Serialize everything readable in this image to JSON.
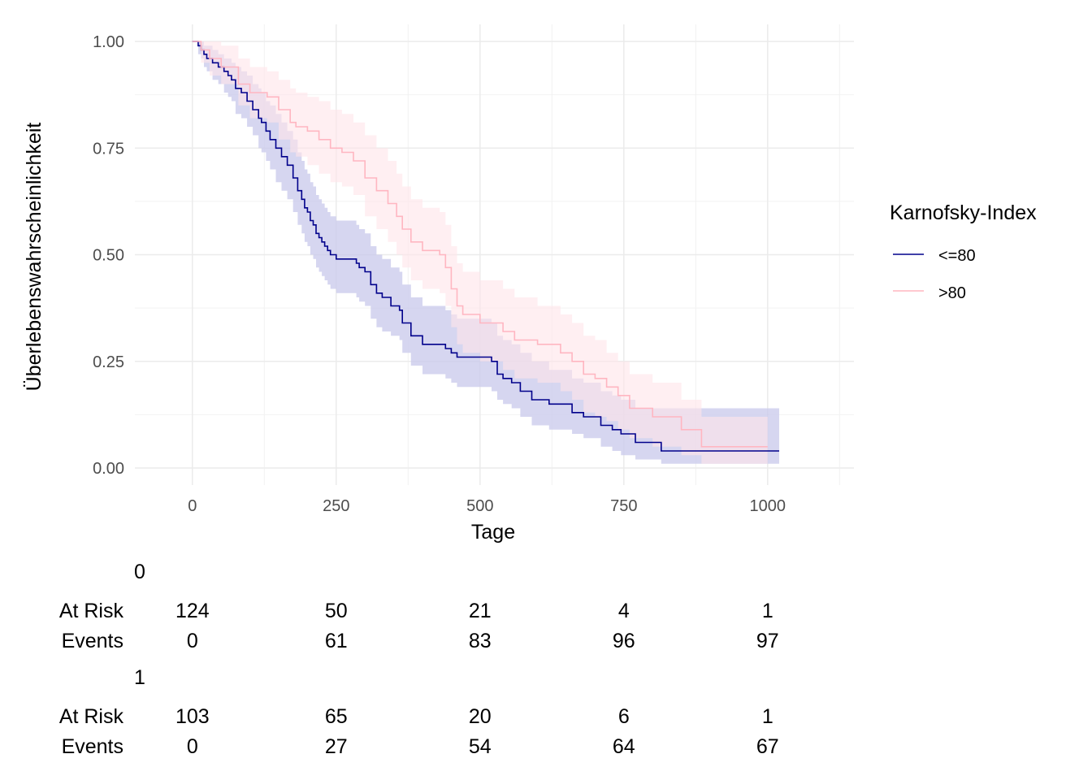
{
  "chart_data": {
    "type": "line",
    "subtype": "kaplan-meier",
    "title": "",
    "xlabel": "Tage",
    "ylabel": "Überlebenswahrscheinlichkeit",
    "xlim": [
      -100,
      1150
    ],
    "ylim": [
      -0.04,
      1.04
    ],
    "xticks": [
      0,
      250,
      500,
      750,
      1000
    ],
    "xtick_labels": [
      "0",
      "250",
      "500",
      "750",
      "1000"
    ],
    "yticks": [
      0,
      0.25,
      0.5,
      0.75,
      1.0
    ],
    "ytick_labels": [
      "0.00",
      "0.25",
      "0.50",
      "0.75",
      "1.00"
    ],
    "grid": true,
    "legend": {
      "title": "Karnofsky-Index",
      "position": "right",
      "entries": [
        {
          "label": "<=80",
          "color": "#00008b"
        },
        {
          "label": ">80",
          "color": "#ffb6c1"
        }
      ]
    },
    "series": [
      {
        "name": "<=80",
        "color": "#00008b",
        "band_color": "#c8c8eb",
        "time": [
          0,
          10,
          15,
          20,
          25,
          35,
          45,
          55,
          62,
          68,
          75,
          85,
          95,
          105,
          115,
          120,
          128,
          135,
          145,
          155,
          165,
          175,
          183,
          190,
          195,
          200,
          205,
          210,
          215,
          220,
          225,
          230,
          235,
          240,
          250,
          270,
          285,
          290,
          300,
          310,
          320,
          330,
          345,
          360,
          365,
          380,
          400,
          440,
          450,
          460,
          470,
          520,
          530,
          540,
          555,
          570,
          590,
          620,
          640,
          650,
          660,
          680,
          710,
          730,
          745,
          770,
          800,
          815,
          1000,
          1020
        ],
        "survival": [
          1.0,
          0.99,
          0.98,
          0.97,
          0.96,
          0.95,
          0.94,
          0.93,
          0.92,
          0.91,
          0.89,
          0.88,
          0.86,
          0.84,
          0.82,
          0.81,
          0.79,
          0.77,
          0.75,
          0.73,
          0.71,
          0.68,
          0.65,
          0.63,
          0.61,
          0.6,
          0.58,
          0.57,
          0.55,
          0.54,
          0.53,
          0.52,
          0.51,
          0.5,
          0.49,
          0.49,
          0.48,
          0.47,
          0.46,
          0.43,
          0.41,
          0.4,
          0.38,
          0.37,
          0.34,
          0.31,
          0.29,
          0.28,
          0.27,
          0.26,
          0.26,
          0.25,
          0.22,
          0.21,
          0.2,
          0.18,
          0.16,
          0.15,
          0.15,
          0.15,
          0.13,
          0.12,
          0.1,
          0.09,
          0.08,
          0.06,
          0.06,
          0.04,
          0.04,
          0.04
        ],
        "lower": [
          1.0,
          0.97,
          0.96,
          0.94,
          0.93,
          0.91,
          0.9,
          0.88,
          0.87,
          0.86,
          0.83,
          0.82,
          0.8,
          0.78,
          0.75,
          0.74,
          0.72,
          0.7,
          0.67,
          0.65,
          0.63,
          0.6,
          0.57,
          0.55,
          0.53,
          0.52,
          0.5,
          0.49,
          0.47,
          0.46,
          0.45,
          0.44,
          0.43,
          0.42,
          0.41,
          0.41,
          0.4,
          0.39,
          0.38,
          0.35,
          0.33,
          0.32,
          0.31,
          0.3,
          0.27,
          0.24,
          0.22,
          0.21,
          0.2,
          0.19,
          0.19,
          0.18,
          0.16,
          0.15,
          0.14,
          0.12,
          0.1,
          0.09,
          0.09,
          0.09,
          0.08,
          0.07,
          0.05,
          0.04,
          0.03,
          0.02,
          0.02,
          0.01,
          0.01,
          0.01
        ],
        "upper": [
          1.0,
          1.0,
          1.0,
          0.99,
          0.99,
          0.98,
          0.97,
          0.96,
          0.96,
          0.95,
          0.94,
          0.93,
          0.92,
          0.9,
          0.89,
          0.88,
          0.86,
          0.85,
          0.83,
          0.81,
          0.79,
          0.77,
          0.74,
          0.72,
          0.7,
          0.69,
          0.67,
          0.66,
          0.64,
          0.63,
          0.62,
          0.61,
          0.6,
          0.59,
          0.58,
          0.58,
          0.57,
          0.56,
          0.55,
          0.52,
          0.5,
          0.49,
          0.47,
          0.46,
          0.43,
          0.4,
          0.38,
          0.37,
          0.36,
          0.35,
          0.35,
          0.34,
          0.31,
          0.3,
          0.29,
          0.27,
          0.25,
          0.23,
          0.23,
          0.23,
          0.21,
          0.2,
          0.18,
          0.17,
          0.16,
          0.14,
          0.14,
          0.14,
          0.14,
          0.14
        ]
      },
      {
        "name": ">80",
        "color": "#ffb6c1",
        "band_color": "#ffe4ea",
        "time": [
          0,
          15,
          30,
          50,
          80,
          100,
          130,
          150,
          170,
          180,
          200,
          220,
          240,
          260,
          280,
          300,
          320,
          340,
          355,
          365,
          380,
          400,
          430,
          440,
          450,
          460,
          470,
          500,
          520,
          540,
          560,
          600,
          640,
          660,
          680,
          700,
          720,
          740,
          760,
          800,
          850,
          885,
          1000
        ],
        "survival": [
          1.0,
          0.98,
          0.96,
          0.94,
          0.9,
          0.88,
          0.87,
          0.84,
          0.81,
          0.8,
          0.79,
          0.77,
          0.75,
          0.74,
          0.72,
          0.68,
          0.65,
          0.62,
          0.59,
          0.56,
          0.53,
          0.51,
          0.5,
          0.47,
          0.42,
          0.38,
          0.36,
          0.34,
          0.34,
          0.32,
          0.3,
          0.29,
          0.27,
          0.25,
          0.22,
          0.21,
          0.19,
          0.17,
          0.14,
          0.12,
          0.09,
          0.05,
          0.05
        ],
        "lower": [
          1.0,
          0.95,
          0.92,
          0.9,
          0.85,
          0.82,
          0.81,
          0.77,
          0.74,
          0.73,
          0.71,
          0.69,
          0.67,
          0.66,
          0.64,
          0.59,
          0.56,
          0.53,
          0.5,
          0.47,
          0.44,
          0.42,
          0.41,
          0.38,
          0.33,
          0.29,
          0.27,
          0.25,
          0.25,
          0.23,
          0.21,
          0.2,
          0.18,
          0.16,
          0.13,
          0.12,
          0.11,
          0.09,
          0.07,
          0.05,
          0.03,
          0.01,
          0.01
        ],
        "upper": [
          1.0,
          1.0,
          1.0,
          0.99,
          0.96,
          0.94,
          0.93,
          0.91,
          0.89,
          0.88,
          0.87,
          0.86,
          0.84,
          0.83,
          0.81,
          0.78,
          0.75,
          0.72,
          0.69,
          0.66,
          0.63,
          0.61,
          0.6,
          0.57,
          0.52,
          0.48,
          0.46,
          0.44,
          0.44,
          0.42,
          0.4,
          0.38,
          0.36,
          0.34,
          0.31,
          0.3,
          0.27,
          0.25,
          0.22,
          0.2,
          0.16,
          0.12,
          0.12
        ]
      }
    ]
  },
  "risk_table": {
    "times": [
      0,
      250,
      500,
      750,
      1000
    ],
    "groups": [
      {
        "label": "0",
        "at_risk_label": "At Risk",
        "events_label": "Events",
        "at_risk": [
          "124",
          "50",
          "21",
          "4",
          "1"
        ],
        "events": [
          "0",
          "61",
          "83",
          "96",
          "97"
        ]
      },
      {
        "label": "1",
        "at_risk_label": "At Risk",
        "events_label": "Events",
        "at_risk": [
          "103",
          "65",
          "20",
          "6",
          "1"
        ],
        "events": [
          "0",
          "27",
          "54",
          "64",
          "67"
        ]
      }
    ]
  }
}
